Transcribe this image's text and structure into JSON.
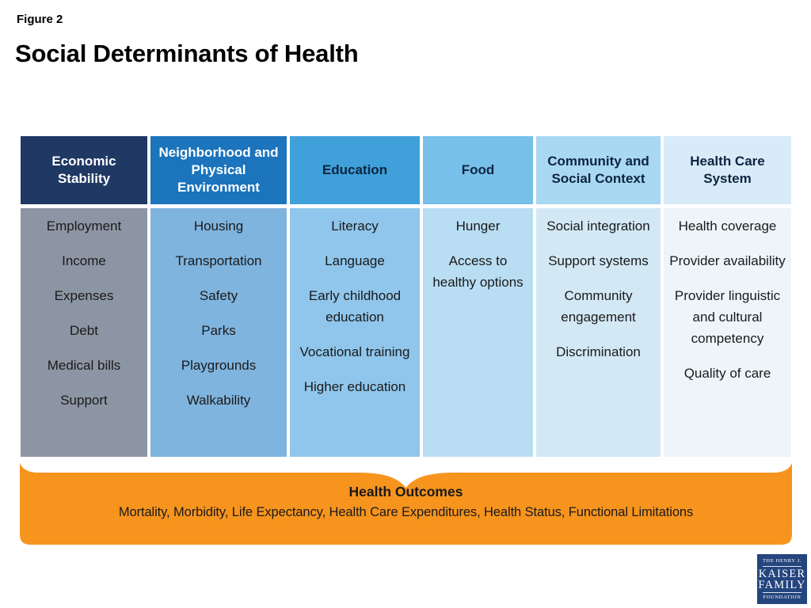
{
  "figure_label": "Figure 2",
  "title": "Social Determinants of Health",
  "columns": [
    {
      "header": "Economic Stability",
      "header_bg": "#1F3864",
      "header_text": "#FFFFFF",
      "body_bg": "#8C95A3",
      "items": [
        "Employment",
        "Income",
        "Expenses",
        "Debt",
        "Medical bills",
        "Support"
      ]
    },
    {
      "header": "Neighborhood and Physical Environment",
      "header_bg": "#1B74BC",
      "header_text": "#FFFFFF",
      "body_bg": "#7FB4DE",
      "items": [
        "Housing",
        "Transportation",
        "Safety",
        "Parks",
        "Playgrounds",
        "Walkability"
      ]
    },
    {
      "header": "Education",
      "header_bg": "#3FA0DA",
      "header_text": "#0E2440",
      "body_bg": "#90C6EB",
      "items": [
        "Literacy",
        "Language",
        "Early childhood education",
        "Vocational training",
        "Higher education"
      ]
    },
    {
      "header": "Food",
      "header_bg": "#76C0EA",
      "header_text": "#0E2440",
      "body_bg": "#B9DDF2",
      "items": [
        "Hunger",
        "Access to healthy options"
      ]
    },
    {
      "header": "Community and Social Context",
      "header_bg": "#A9D8F3",
      "header_text": "#0E2440",
      "body_bg": "#D3E8F5",
      "items": [
        "Social integration",
        "Support systems",
        "Community engagement",
        "Discrimination"
      ]
    },
    {
      "header": "Health Care System",
      "header_bg": "#D8EBF8",
      "header_text": "#0E2440",
      "body_bg": "#EDF5FA",
      "items": [
        "Health coverage",
        "Provider availability",
        "Provider linguistic and cultural competency",
        "Quality of care"
      ]
    }
  ],
  "outcomes": {
    "title": "Health Outcomes",
    "line": "Mortality, Morbidity, Life Expectancy, Health Care Expenditures, Health Status, Functional Limitations",
    "bg": "#F7941E"
  },
  "logo": {
    "line1": "THE HENRY J.",
    "line2": "KAISER",
    "line3": "FAMILY",
    "line4": "FOUNDATION",
    "bg": "#24457E"
  }
}
